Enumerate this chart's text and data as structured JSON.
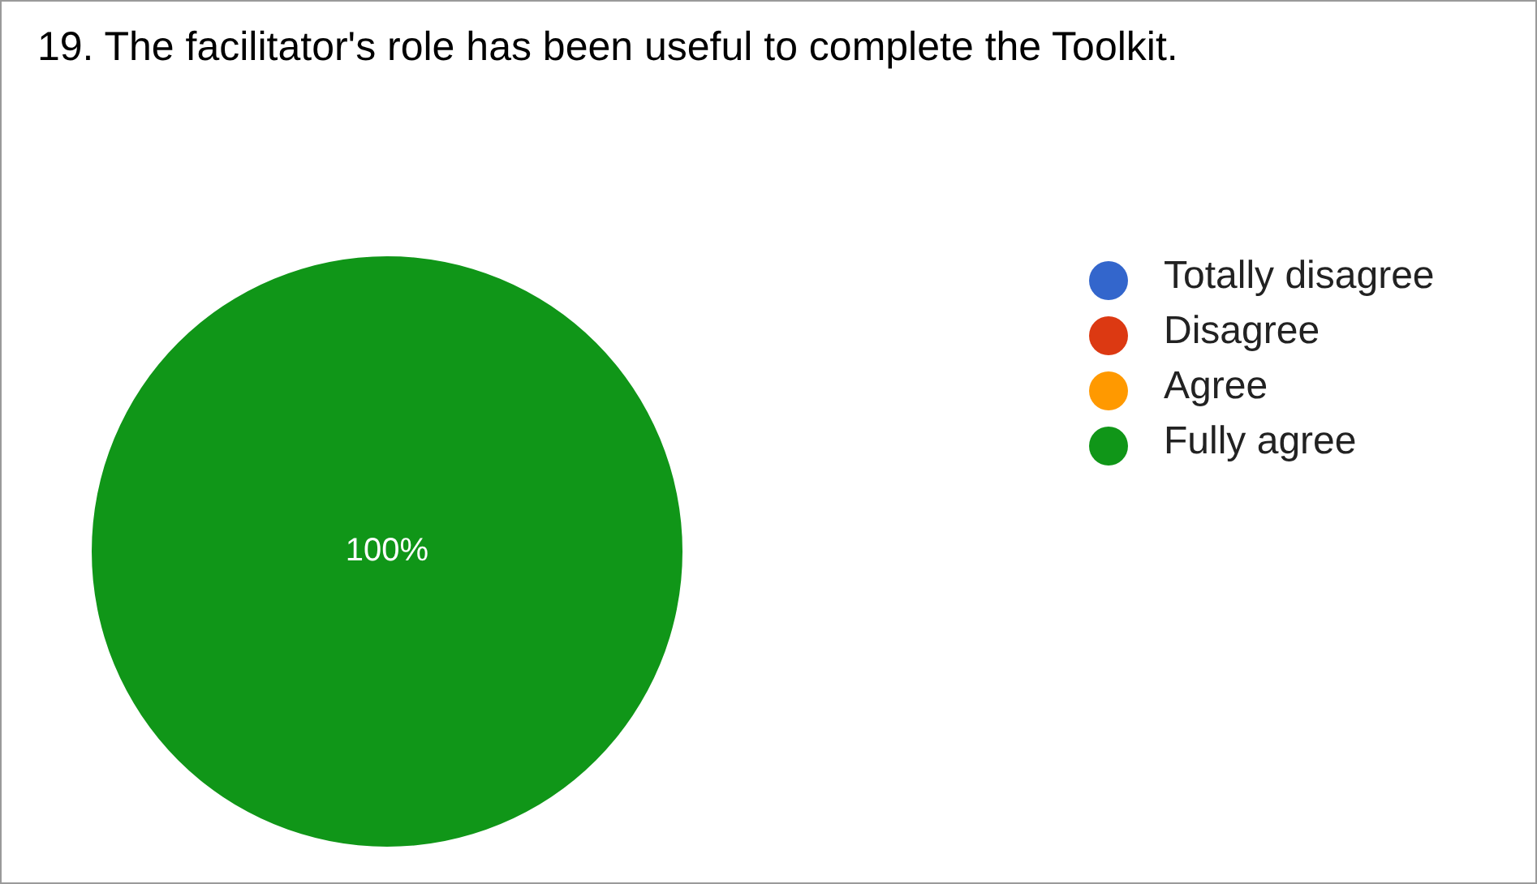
{
  "chart_data": {
    "type": "pie",
    "title": "19. The facilitator's role has been useful to complete the Toolkit.",
    "categories": [
      "Totally disagree",
      "Disagree",
      "Agree",
      "Fully agree"
    ],
    "values": [
      0,
      0,
      0,
      100
    ],
    "colors": [
      "#3366cc",
      "#dc3912",
      "#ff9900",
      "#109618"
    ],
    "value_labels": [
      null,
      null,
      null,
      "100%"
    ],
    "legend": "right"
  }
}
